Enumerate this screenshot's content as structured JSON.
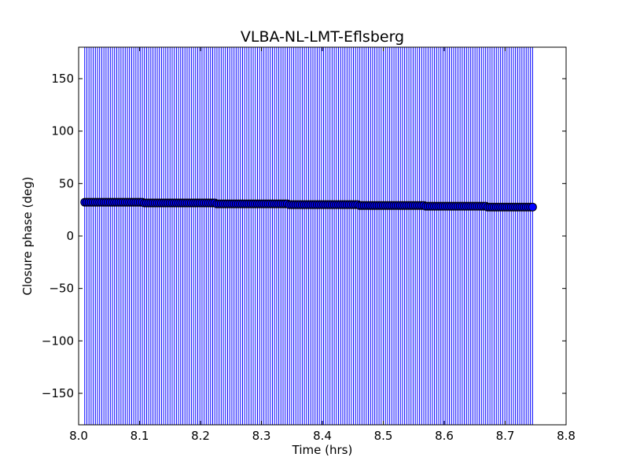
{
  "chart_data": {
    "type": "scatter",
    "title": "VLBA-NL-LMT-Eflsberg",
    "xlabel": "Time (hrs)",
    "ylabel": "Closure phase (deg)",
    "xlim": [
      8.0,
      8.8
    ],
    "ylim": [
      -180,
      180
    ],
    "xticks": [
      8.0,
      8.1,
      8.2,
      8.3,
      8.4,
      8.5,
      8.6,
      8.7,
      8.8
    ],
    "xtick_labels": [
      "8.0",
      "8.1",
      "8.2",
      "8.3",
      "8.4",
      "8.5",
      "8.6",
      "8.7",
      "8.8"
    ],
    "yticks": [
      -150,
      -100,
      -50,
      0,
      50,
      100,
      150
    ],
    "ytick_labels": [
      "−150",
      "−100",
      "−50",
      "0",
      "50",
      "100",
      "150"
    ],
    "grid": false,
    "series": {
      "name": "closure phase",
      "marker_color": "#0000ff",
      "edge_color": "#000000",
      "errorbar_color": "#0000ff",
      "x_start": 8.01,
      "x_step": 0.0035,
      "x_end": 8.745,
      "yerr": 250,
      "segments": [
        {
          "x_from": 8.0,
          "x_to": 8.107,
          "y": 32.2
        },
        {
          "x_from": 8.107,
          "x_to": 8.225,
          "y": 31.5
        },
        {
          "x_from": 8.225,
          "x_to": 8.345,
          "y": 30.7
        },
        {
          "x_from": 8.345,
          "x_to": 8.46,
          "y": 29.9
        },
        {
          "x_from": 8.46,
          "x_to": 8.57,
          "y": 29.1
        },
        {
          "x_from": 8.57,
          "x_to": 8.67,
          "y": 28.4
        },
        {
          "x_from": 8.67,
          "x_to": 8.8,
          "y": 27.6
        }
      ]
    }
  }
}
